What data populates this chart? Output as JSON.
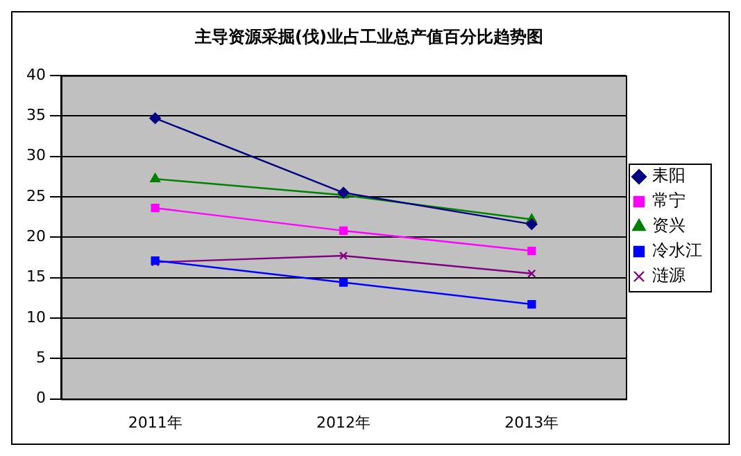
{
  "chart_data": {
    "type": "line",
    "title": "主导资源采掘(伐)业占工业总产值百分比趋势图",
    "categories": [
      "2011年",
      "2012年",
      "2013年"
    ],
    "series": [
      {
        "name": "耒阳",
        "color": "#000080",
        "marker": "diamond",
        "values": [
          34.7,
          25.5,
          21.6
        ]
      },
      {
        "name": "常宁",
        "color": "#ff00ff",
        "marker": "square",
        "values": [
          23.6,
          20.8,
          18.3
        ]
      },
      {
        "name": "资兴",
        "color": "#008000",
        "marker": "triangle",
        "values": [
          27.2,
          25.2,
          22.2
        ]
      },
      {
        "name": "冷水江",
        "color": "#0000ff",
        "marker": "square",
        "values": [
          17.1,
          14.4,
          11.7
        ]
      },
      {
        "name": "涟源",
        "color": "#800080",
        "marker": "cross",
        "values": [
          16.9,
          17.7,
          15.5
        ]
      }
    ],
    "ylim": [
      0,
      40
    ],
    "yticks": [
      0,
      5,
      10,
      15,
      20,
      25,
      30,
      35,
      40
    ],
    "grid": "y",
    "legend": "right"
  }
}
